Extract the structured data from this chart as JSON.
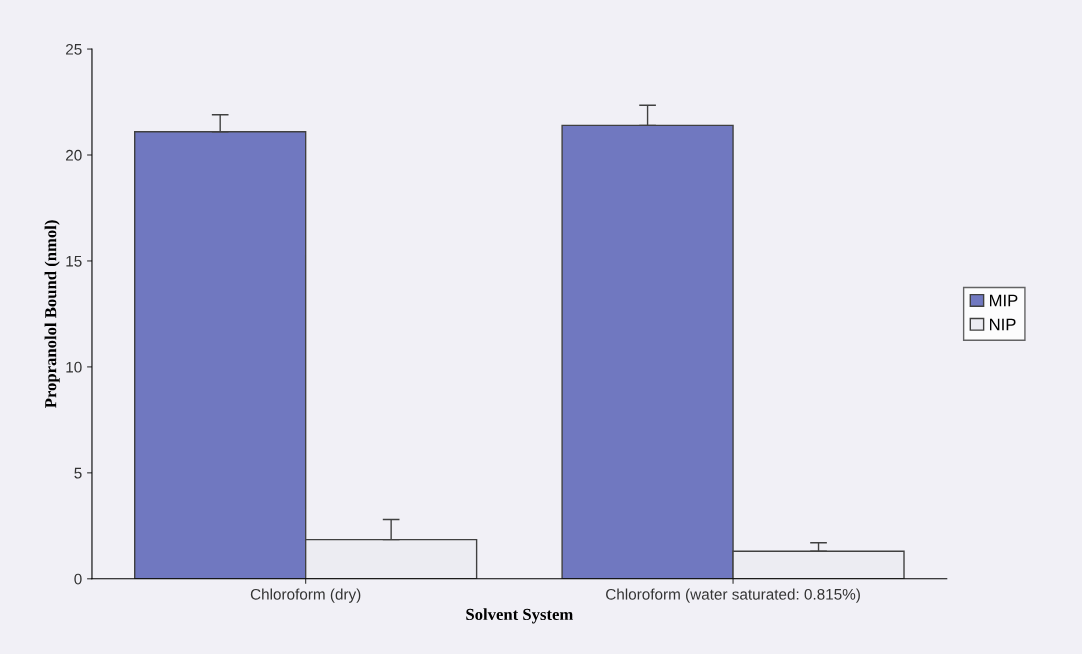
{
  "chart_data": {
    "type": "bar",
    "xlabel": "Solvent System",
    "ylabel": "Propranolol Bound (nmol)",
    "categories": [
      "Chloroform (dry)",
      "Chloroform (water saturated: 0.815%)"
    ],
    "series": [
      {
        "name": "MIP",
        "color": "#7078c0",
        "values": [
          21.1,
          21.4
        ],
        "errors": [
          [
            21.1,
            21.9
          ],
          [
            21.4,
            22.35
          ]
        ]
      },
      {
        "name": "NIP",
        "color": "#ececf2",
        "values": [
          1.85,
          1.3
        ],
        "errors": [
          [
            1.85,
            2.8
          ],
          [
            1.3,
            1.7
          ]
        ]
      }
    ],
    "ylim": [
      0,
      25
    ],
    "yticks": [
      0,
      5,
      10,
      15,
      20,
      25
    ],
    "grid": false,
    "legend": "right"
  }
}
